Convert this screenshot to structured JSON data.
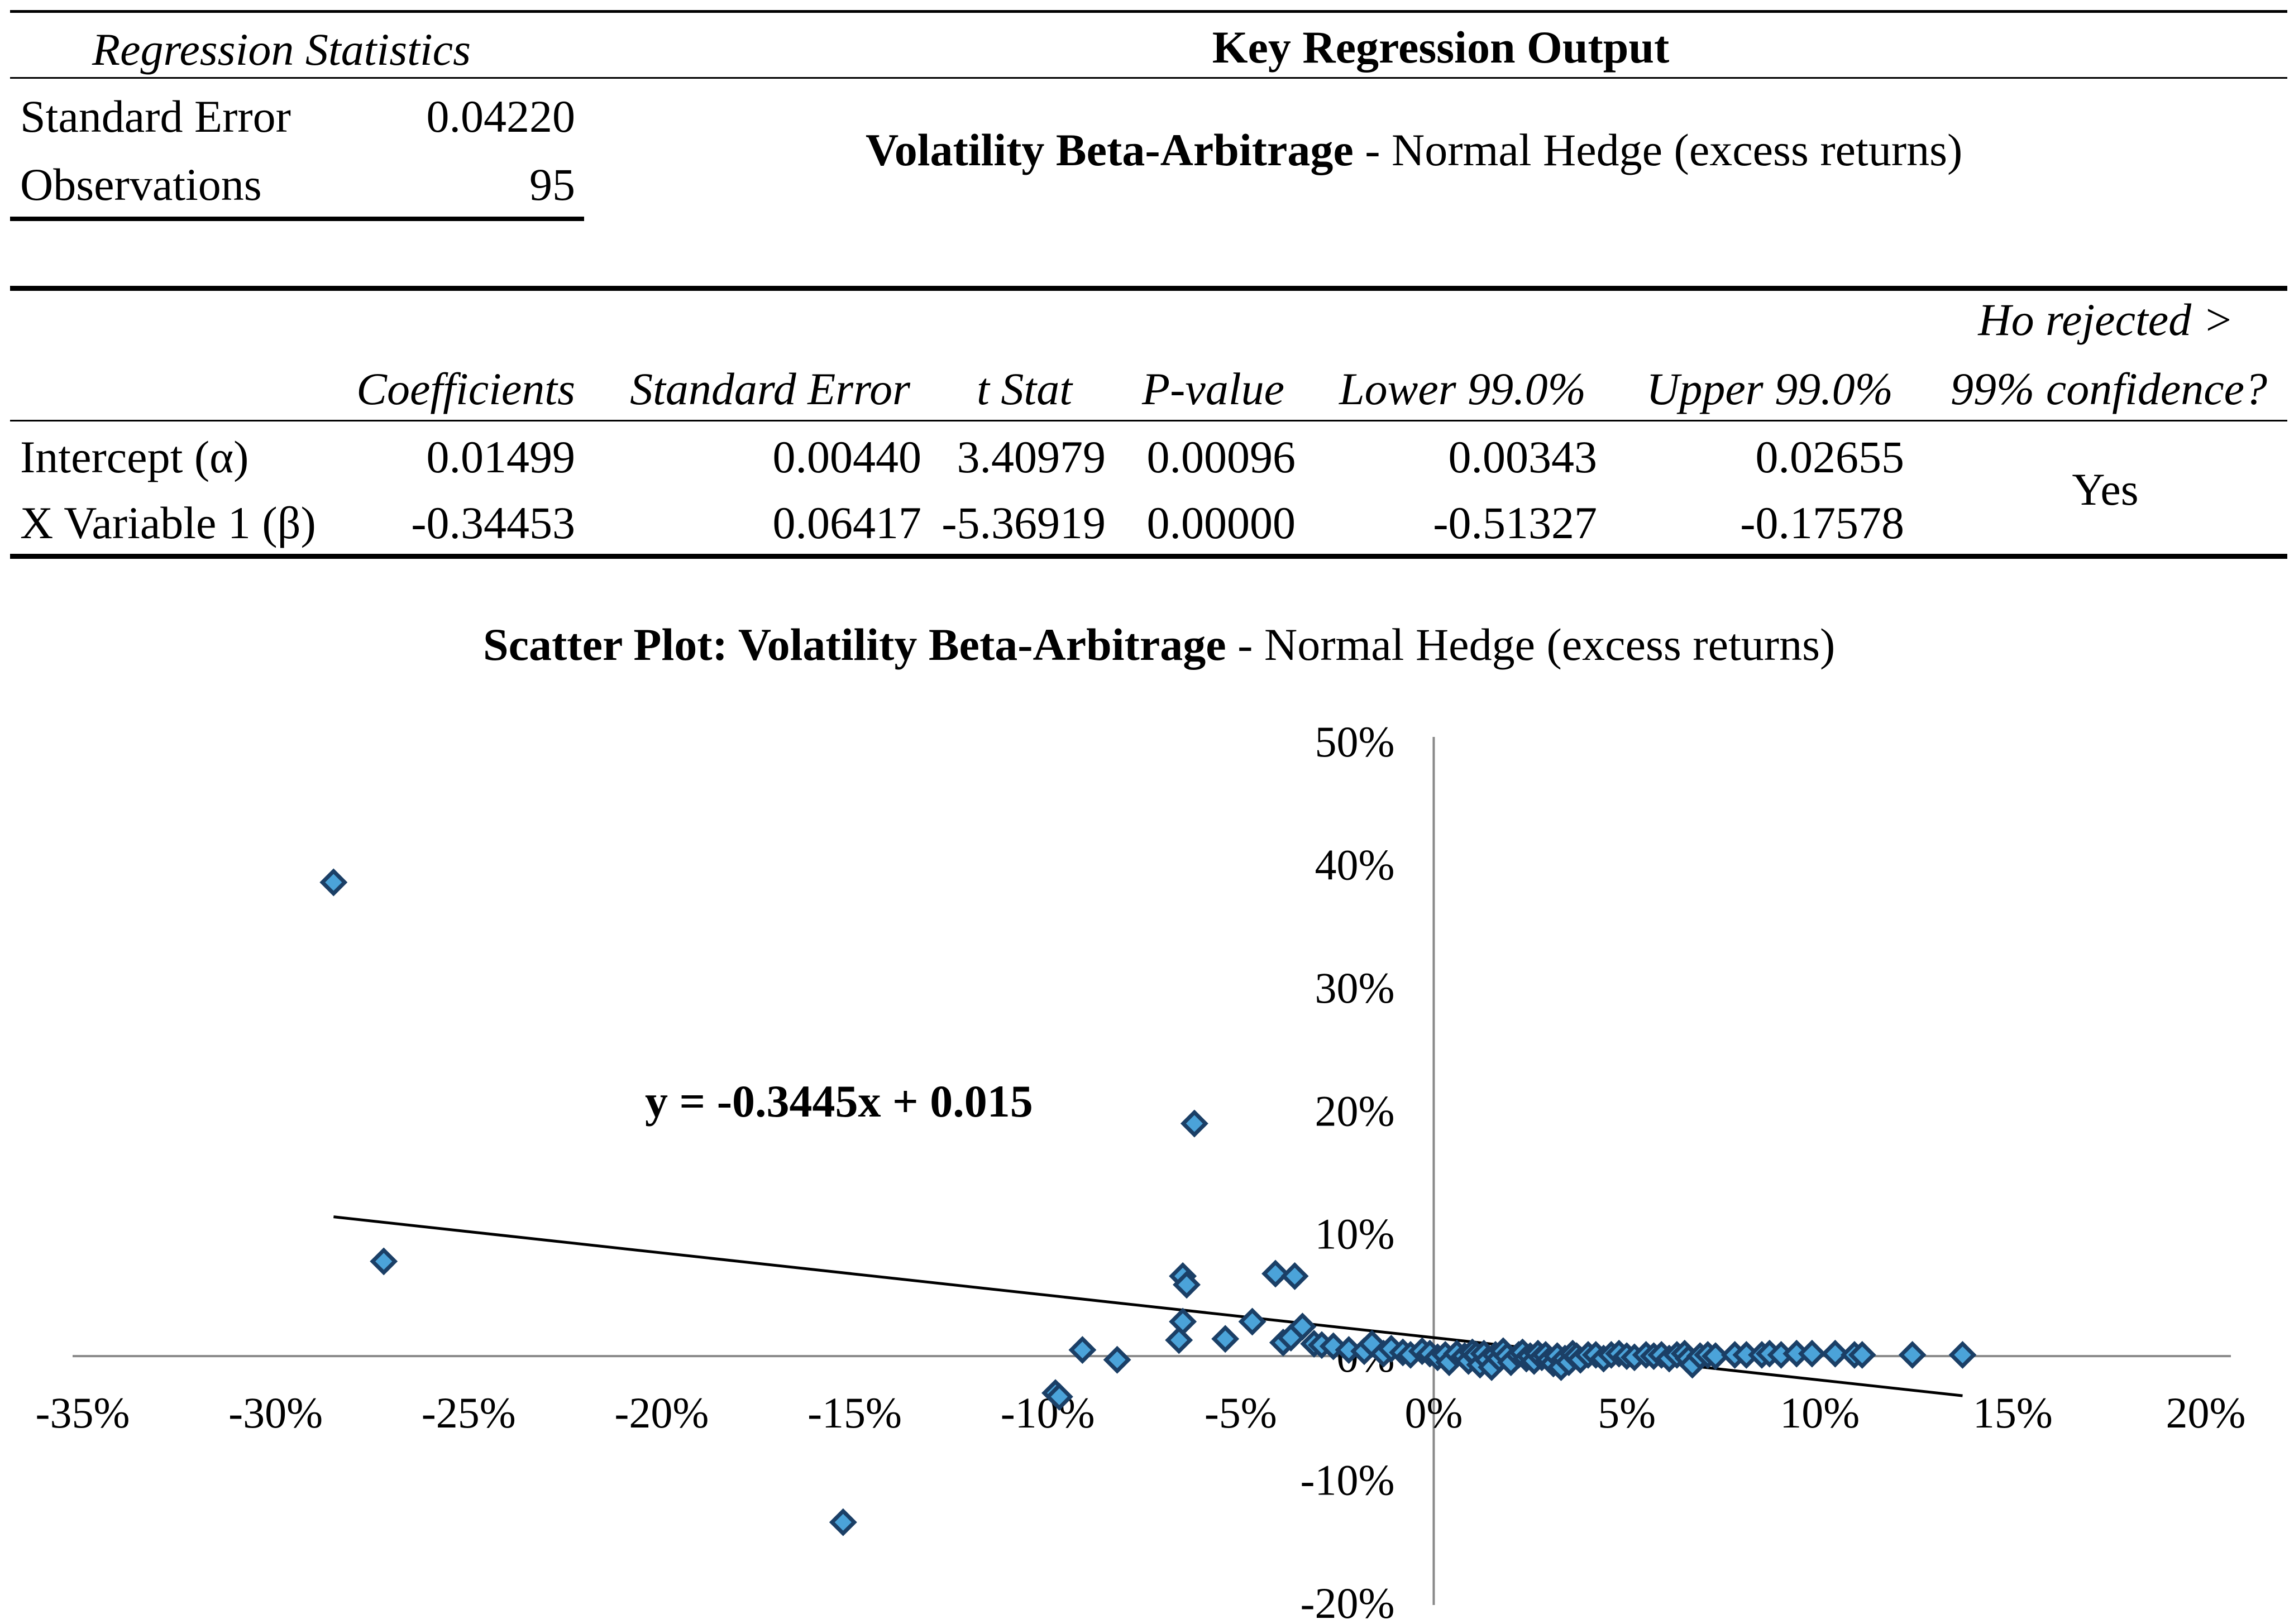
{
  "regression_statistics": {
    "title": "Regression Statistics",
    "rows": [
      {
        "label": "Standard Error",
        "value": "0.04220"
      },
      {
        "label": "Observations",
        "value": "95"
      }
    ]
  },
  "key_output": {
    "title": "Key Regression Output",
    "subtitle_bold": "Volatility Beta-Arbitrage",
    "subtitle_rest": " - Normal Hedge (excess returns)"
  },
  "coef_table": {
    "headers": {
      "coefficients": "Coefficients",
      "standard_error": "Standard Error",
      "t_stat": "t Stat",
      "p_value": "P-value",
      "lower": "Lower 99.0%",
      "upper": "Upper 99.0%",
      "ho_line1": "Ho rejected >",
      "ho_line2": "99% confidence?"
    },
    "rows": [
      {
        "label": "Intercept (α)",
        "coef": "0.01499",
        "se": "0.00440",
        "t": "3.40979",
        "p": "0.00096",
        "lower": "0.00343",
        "upper": "0.02655"
      },
      {
        "label": "X Variable 1 (β)",
        "coef": "-0.34453",
        "se": "0.06417",
        "t": "-5.36919",
        "p": "0.00000",
        "lower": "-0.51327",
        "upper": "-0.17578"
      }
    ],
    "ho_answer": "Yes"
  },
  "chart_data": {
    "type": "scatter",
    "title_bold": "Scatter Plot: Volatility Beta-Arbitrage",
    "title_rest": " - Normal Hedge (excess returns)",
    "xlim": [
      -0.35,
      0.2
    ],
    "ylim": [
      -0.2,
      0.5
    ],
    "x_ticks": [
      -0.35,
      -0.3,
      -0.25,
      -0.2,
      -0.15,
      -0.1,
      -0.05,
      0.0,
      0.05,
      0.1,
      0.15,
      0.2
    ],
    "x_tick_labels": [
      "-35%",
      "-30%",
      "-25%",
      "-20%",
      "-15%",
      "-10%",
      "-5%",
      "0%",
      "5%",
      "10%",
      "15%",
      "20%"
    ],
    "y_ticks": [
      0.5,
      0.4,
      0.3,
      0.2,
      0.1,
      0.0,
      -0.1,
      -0.2
    ],
    "y_tick_labels": [
      "50%",
      "40%",
      "30%",
      "20%",
      "10%",
      "0%",
      "-10%",
      "-20%"
    ],
    "trendline": {
      "slope": -0.3445,
      "intercept": 0.015,
      "x_range": [
        -0.285,
        0.137
      ],
      "equation": "y = -0.3445x + 0.015"
    },
    "marker_fill": "#4ba3d9",
    "marker_edge": "#1b3f66",
    "points": [
      [
        -0.285,
        0.385
      ],
      [
        -0.272,
        0.077
      ],
      [
        -0.153,
        -0.135
      ],
      [
        -0.098,
        -0.03
      ],
      [
        -0.097,
        -0.033
      ],
      [
        -0.091,
        0.005
      ],
      [
        -0.082,
        -0.003
      ],
      [
        -0.065,
        0.065
      ],
      [
        -0.064,
        0.058
      ],
      [
        -0.065,
        0.028
      ],
      [
        -0.066,
        0.013
      ],
      [
        -0.062,
        0.189
      ],
      [
        -0.054,
        0.014
      ],
      [
        -0.047,
        0.028
      ],
      [
        -0.041,
        0.067
      ],
      [
        -0.036,
        0.065
      ],
      [
        -0.039,
        0.011
      ],
      [
        -0.037,
        0.015
      ],
      [
        -0.034,
        0.024
      ],
      [
        -0.031,
        0.01
      ],
      [
        -0.029,
        0.009
      ],
      [
        -0.026,
        0.008
      ],
      [
        -0.022,
        0.005
      ],
      [
        -0.018,
        0.004
      ],
      [
        -0.016,
        0.01
      ],
      [
        -0.013,
        0.002
      ],
      [
        -0.011,
        0.006
      ],
      [
        -0.008,
        0.003
      ],
      [
        -0.006,
        0.001
      ],
      [
        -0.003,
        0.004
      ],
      [
        -0.001,
        0.002
      ],
      [
        0.001,
        -0.001
      ],
      [
        0.003,
        0.001
      ],
      [
        0.004,
        -0.005
      ],
      [
        0.006,
        0.002
      ],
      [
        0.008,
        0.0
      ],
      [
        0.009,
        -0.004
      ],
      [
        0.01,
        0.003
      ],
      [
        0.011,
        0.001
      ],
      [
        0.012,
        -0.007
      ],
      [
        0.013,
        0.002
      ],
      [
        0.014,
        -0.003
      ],
      [
        0.015,
        -0.009
      ],
      [
        0.016,
        0.001
      ],
      [
        0.017,
        -0.002
      ],
      [
        0.018,
        0.004
      ],
      [
        0.019,
        0.0
      ],
      [
        0.02,
        -0.005
      ],
      [
        0.022,
        0.001
      ],
      [
        0.023,
        0.003
      ],
      [
        0.024,
        -0.002
      ],
      [
        0.025,
        0.0
      ],
      [
        0.026,
        -0.004
      ],
      [
        0.027,
        0.002
      ],
      [
        0.028,
        -0.001
      ],
      [
        0.029,
        0.001
      ],
      [
        0.03,
        -0.003
      ],
      [
        0.031,
        -0.006
      ],
      [
        0.032,
        0.0
      ],
      [
        0.033,
        -0.009
      ],
      [
        0.034,
        -0.002
      ],
      [
        0.035,
        -0.005
      ],
      [
        0.036,
        0.002
      ],
      [
        0.037,
        0.0
      ],
      [
        0.038,
        -0.003
      ],
      [
        0.04,
        0.001
      ],
      [
        0.042,
        0.001
      ],
      [
        0.044,
        -0.002
      ],
      [
        0.046,
        0.001
      ],
      [
        0.048,
        0.002
      ],
      [
        0.05,
        0.0
      ],
      [
        0.052,
        -0.001
      ],
      [
        0.055,
        0.001
      ],
      [
        0.057,
        0.0
      ],
      [
        0.059,
        0.001
      ],
      [
        0.061,
        -0.002
      ],
      [
        0.063,
        0.001
      ],
      [
        0.065,
        0.002
      ],
      [
        0.066,
        -0.002
      ],
      [
        0.067,
        -0.007
      ],
      [
        0.069,
        0.0
      ],
      [
        0.071,
        0.001
      ],
      [
        0.073,
        0.0
      ],
      [
        0.078,
        0.001
      ],
      [
        0.081,
        0.001
      ],
      [
        0.085,
        0.001
      ],
      [
        0.087,
        0.002
      ],
      [
        0.09,
        0.001
      ],
      [
        0.094,
        0.002
      ],
      [
        0.098,
        0.002
      ],
      [
        0.104,
        0.002
      ],
      [
        0.109,
        0.001
      ],
      [
        0.111,
        0.001
      ],
      [
        0.124,
        0.001
      ],
      [
        0.137,
        0.001
      ]
    ]
  }
}
